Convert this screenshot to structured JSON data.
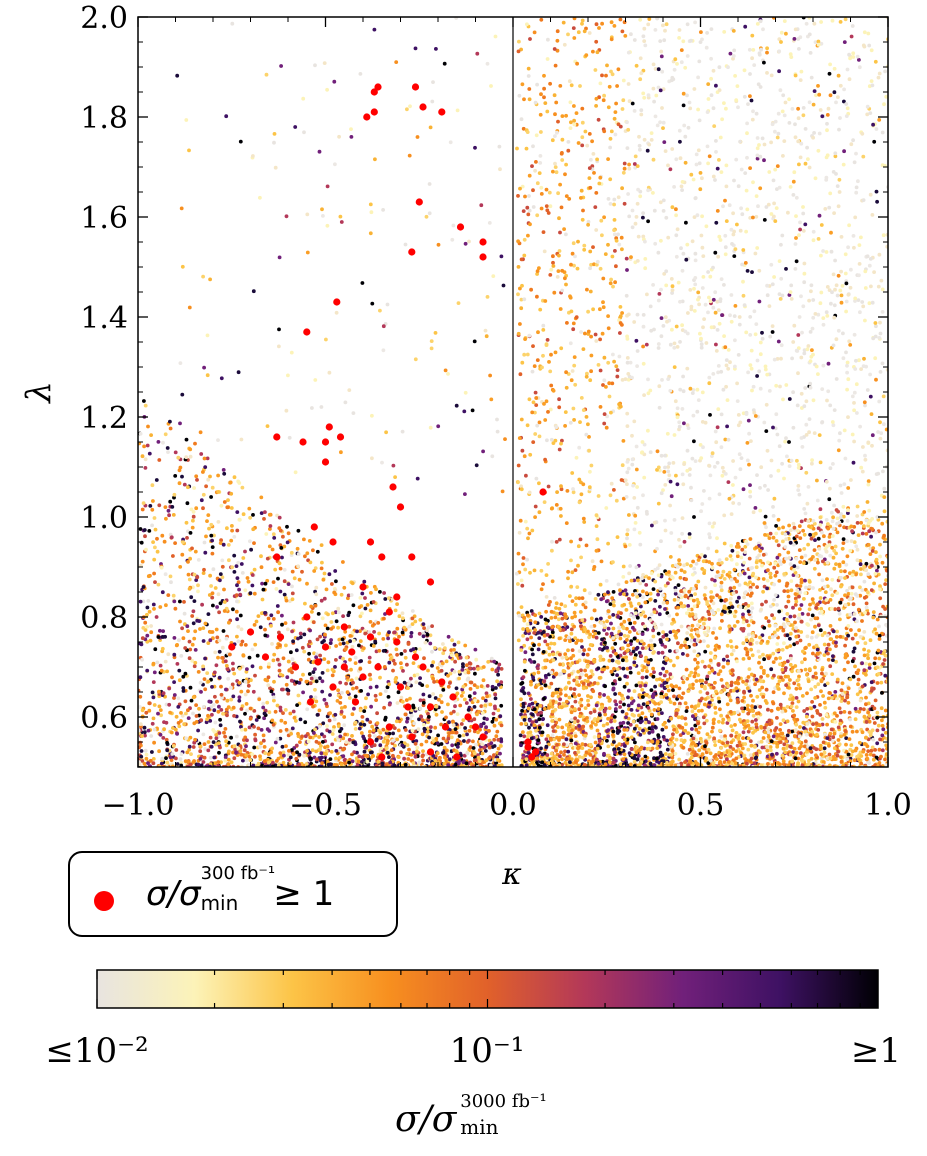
{
  "chart_data": {
    "type": "scatter",
    "xlabel": "κ",
    "ylabel": "λ",
    "xlim": [
      -1.0,
      1.0
    ],
    "ylim": [
      0.5,
      2.0
    ],
    "xticks": [
      "−1.0",
      "−0.5",
      "0.0",
      "0.5",
      "1.0"
    ],
    "xtick_values": [
      -1.0,
      -0.5,
      0.0,
      0.5,
      1.0
    ],
    "yticks": [
      "0.6",
      "0.8",
      "1.0",
      "1.2",
      "1.4",
      "1.6",
      "1.8",
      "2.0"
    ],
    "ytick_values": [
      0.6,
      0.8,
      1.0,
      1.2,
      1.4,
      1.6,
      1.8,
      2.0
    ],
    "vertical_line_at": 0.0,
    "colorbar": {
      "scale": "log",
      "range": [
        0.01,
        1
      ],
      "tick_labels": [
        "≤10⁻²",
        "10⁻¹",
        "≥1"
      ],
      "label": "σ/σ_min^(3000 fb⁻¹)",
      "colormap": [
        "#e8e4e0",
        "#fcf3b8",
        "#fcc447",
        "#f78f1f",
        "#e1612a",
        "#b33859",
        "#71207a",
        "#3e1163",
        "#000004"
      ]
    },
    "highlight": {
      "legend_label": "σ/σ_min^(300 fb⁻¹) ≥ 1",
      "color": "#ff0000",
      "points": [
        [
          -0.36,
          1.86
        ],
        [
          -0.26,
          1.86
        ],
        [
          -0.37,
          1.85
        ],
        [
          -0.39,
          1.8
        ],
        [
          -0.37,
          1.81
        ],
        [
          -0.24,
          1.82
        ],
        [
          -0.19,
          1.81
        ],
        [
          -0.25,
          1.63
        ],
        [
          -0.14,
          1.58
        ],
        [
          -0.08,
          1.55
        ],
        [
          -0.08,
          1.52
        ],
        [
          -0.27,
          1.53
        ],
        [
          -0.47,
          1.43
        ],
        [
          -0.55,
          1.37
        ],
        [
          -0.63,
          1.16
        ],
        [
          -0.56,
          1.15
        ],
        [
          -0.49,
          1.18
        ],
        [
          -0.5,
          1.15
        ],
        [
          -0.46,
          1.16
        ],
        [
          -0.5,
          1.11
        ],
        [
          -0.32,
          1.06
        ],
        [
          -0.3,
          1.02
        ],
        [
          -0.53,
          0.98
        ],
        [
          -0.48,
          0.95
        ],
        [
          -0.38,
          0.95
        ],
        [
          -0.27,
          0.92
        ],
        [
          -0.35,
          0.92
        ],
        [
          -0.63,
          0.92
        ],
        [
          -0.22,
          0.87
        ],
        [
          -0.31,
          0.84
        ],
        [
          -0.4,
          0.86
        ],
        [
          -0.33,
          0.81
        ],
        [
          -0.38,
          0.76
        ],
        [
          -0.45,
          0.78
        ],
        [
          -0.55,
          0.8
        ],
        [
          -0.62,
          0.76
        ],
        [
          -0.7,
          0.77
        ],
        [
          -0.75,
          0.74
        ],
        [
          -0.66,
          0.72
        ],
        [
          -0.58,
          0.7
        ],
        [
          -0.52,
          0.71
        ],
        [
          -0.45,
          0.7
        ],
        [
          -0.4,
          0.68
        ],
        [
          -0.36,
          0.7
        ],
        [
          -0.3,
          0.66
        ],
        [
          -0.24,
          0.7
        ],
        [
          -0.19,
          0.67
        ],
        [
          -0.16,
          0.64
        ],
        [
          -0.12,
          0.6
        ],
        [
          -0.08,
          0.56
        ],
        [
          -0.1,
          0.58
        ],
        [
          -0.28,
          0.62
        ],
        [
          -0.33,
          0.58
        ],
        [
          -0.38,
          0.55
        ],
        [
          -0.42,
          0.63
        ],
        [
          -0.48,
          0.66
        ],
        [
          -0.54,
          0.63
        ],
        [
          -0.27,
          0.56
        ],
        [
          -0.22,
          0.53
        ],
        [
          -0.35,
          0.52
        ],
        [
          -0.18,
          0.58
        ],
        [
          -0.22,
          0.62
        ],
        [
          -0.26,
          0.72
        ],
        [
          -0.31,
          0.75
        ],
        [
          -0.43,
          0.73
        ],
        [
          -0.5,
          0.74
        ],
        [
          -0.15,
          0.52
        ],
        [
          0.04,
          0.54
        ],
        [
          0.05,
          0.52
        ],
        [
          0.04,
          0.55
        ],
        [
          0.06,
          0.53
        ],
        [
          0.08,
          1.05
        ]
      ]
    }
  },
  "legend": {
    "sigma": "σ/σ",
    "sup": "300 fb⁻¹",
    "sub": "min",
    "tail": "≥ 1"
  },
  "colorbar_label": {
    "main": "σ/σ",
    "sup": "3000 fb⁻¹",
    "sub": "min"
  }
}
